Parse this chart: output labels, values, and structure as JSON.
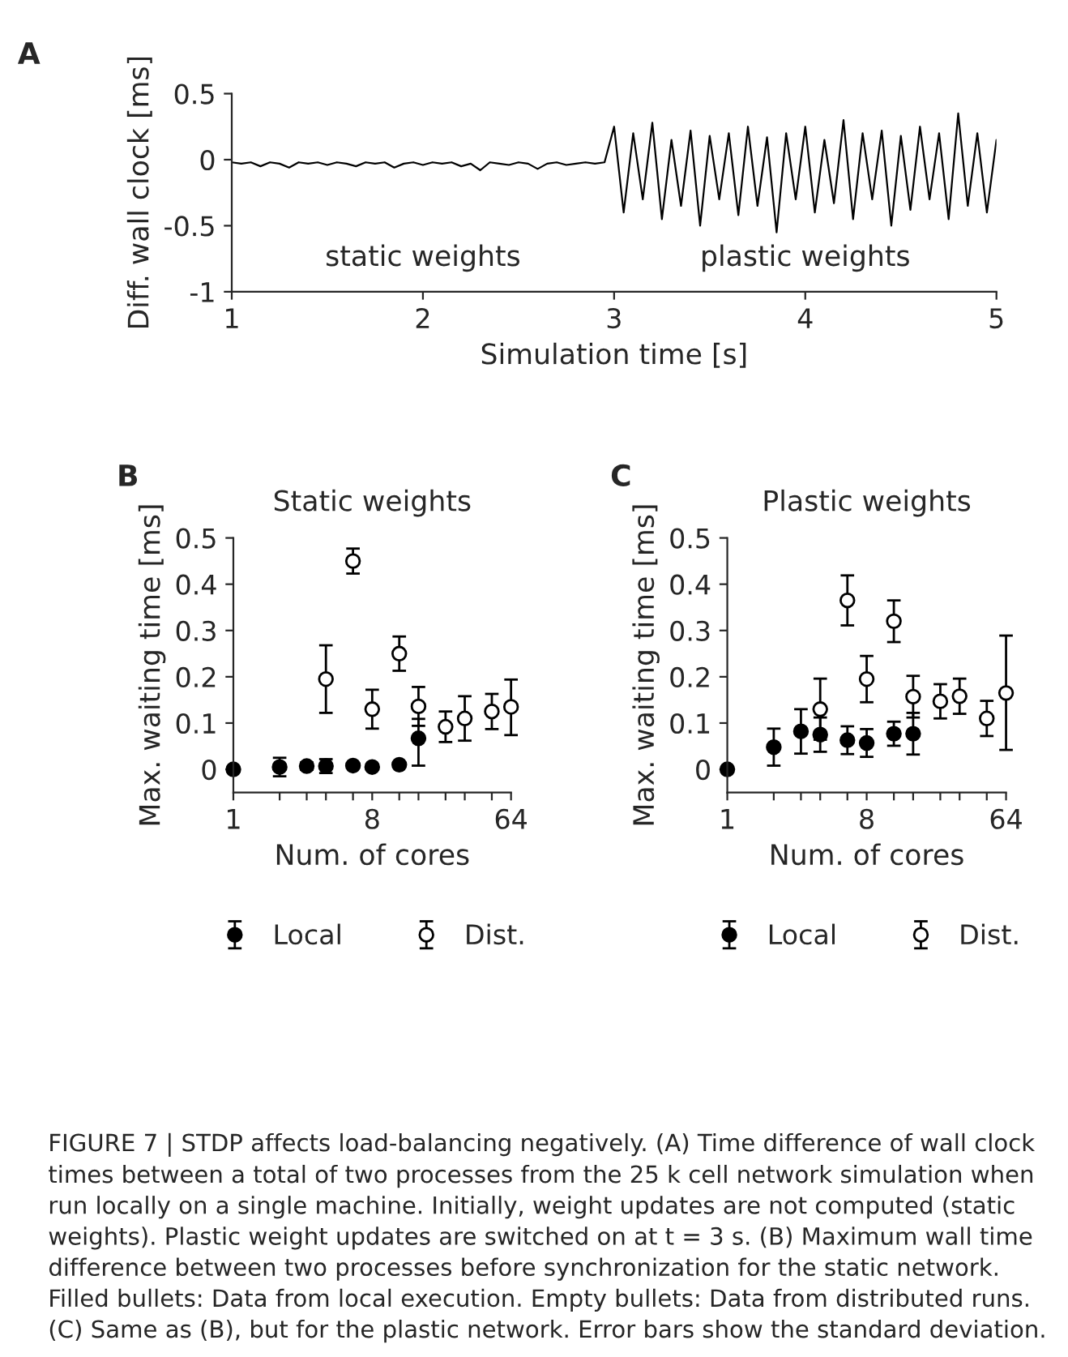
{
  "chart_data": [
    {
      "type": "line",
      "xlabel": "Simulation time [s]",
      "ylabel": "Diff. wall clock [ms]",
      "x": [
        1,
        1.05,
        1.1,
        1.15,
        1.2,
        1.25,
        1.3,
        1.35,
        1.4,
        1.45,
        1.5,
        1.55,
        1.6,
        1.65,
        1.7,
        1.75,
        1.8,
        1.85,
        1.9,
        1.95,
        2,
        2.05,
        2.1,
        2.15,
        2.2,
        2.25,
        2.3,
        2.35,
        2.4,
        2.45,
        2.5,
        2.55,
        2.6,
        2.65,
        2.7,
        2.75,
        2.8,
        2.85,
        2.9,
        2.95,
        3,
        3.05,
        3.1,
        3.15,
        3.2,
        3.25,
        3.3,
        3.35,
        3.4,
        3.45,
        3.5,
        3.55,
        3.6,
        3.65,
        3.7,
        3.75,
        3.8,
        3.85,
        3.9,
        3.95,
        4,
        4.05,
        4.1,
        4.15,
        4.2,
        4.25,
        4.3,
        4.35,
        4.4,
        4.45,
        4.5,
        4.55,
        4.6,
        4.65,
        4.7,
        4.75,
        4.8,
        4.85,
        4.9,
        4.95,
        5
      ],
      "series": [
        {
          "color": "#000000",
          "values": [
            -0.02,
            -0.03,
            -0.02,
            -0.05,
            -0.02,
            -0.03,
            -0.06,
            -0.02,
            -0.03,
            -0.02,
            -0.04,
            -0.02,
            -0.03,
            -0.05,
            -0.02,
            -0.03,
            -0.02,
            -0.06,
            -0.03,
            -0.02,
            -0.04,
            -0.02,
            -0.03,
            -0.02,
            -0.05,
            -0.03,
            -0.08,
            -0.02,
            -0.03,
            -0.04,
            -0.02,
            -0.03,
            -0.07,
            -0.03,
            -0.02,
            -0.04,
            -0.03,
            -0.02,
            -0.03,
            -0.02,
            0.25,
            -0.4,
            0.2,
            -0.3,
            0.28,
            -0.45,
            0.15,
            -0.35,
            0.22,
            -0.5,
            0.18,
            -0.3,
            0.2,
            -0.42,
            0.25,
            -0.35,
            0.17,
            -0.55,
            0.2,
            -0.3,
            0.25,
            -0.4,
            0.15,
            -0.33,
            0.3,
            -0.45,
            0.2,
            -0.3,
            0.22,
            -0.5,
            0.18,
            -0.38,
            0.25,
            -0.3,
            0.2,
            -0.45,
            0.35,
            -0.35,
            0.2,
            -0.4,
            0.15
          ]
        }
      ],
      "xlim": [
        1,
        5
      ],
      "xticks": [
        1,
        2,
        3,
        4,
        5
      ],
      "ylim": [
        -1,
        0.5
      ],
      "yticks": [
        -1,
        -0.5,
        0,
        0.5
      ],
      "annotations": [
        "A",
        "static weights",
        "plastic weights"
      ]
    },
    {
      "type": "scatter",
      "title": "Static weights",
      "xlabel": "Num. of cores",
      "ylabel": "Max. waiting time [ms]",
      "log": "x",
      "marker": "circle",
      "legend": "bottom",
      "series": [
        {
          "name": "Local",
          "color": "#000000",
          "x": [
            1,
            2,
            3,
            4,
            6,
            8,
            12,
            16
          ],
          "values": [
            0,
            0.005,
            0.007,
            0.007,
            0.008,
            0.005,
            0.01,
            0.067
          ],
          "errors": [
            null,
            0.02,
            0.008,
            0.015,
            null,
            null,
            null,
            [
              0.008,
              0.109
            ]
          ]
        },
        {
          "name": "Dist.",
          "color": "#ffffff",
          "x": [
            4,
            6,
            8,
            12,
            16,
            24,
            32,
            48,
            64
          ],
          "values": [
            0.195,
            0.45,
            0.13,
            0.25,
            0.136,
            0.092,
            0.11,
            0.125,
            0.135
          ],
          "errors": [
            0.073,
            0.027,
            0.042,
            0.037,
            0.042,
            0.033,
            0.048,
            0.038,
            [
              0.074,
              0.194
            ]
          ]
        }
      ],
      "xlim": [
        1,
        64
      ],
      "xticks": [
        1,
        {
          "value": 2,
          "label": null
        },
        {
          "value": 3,
          "label": null
        },
        {
          "value": 4,
          "label": null
        },
        {
          "value": 6,
          "label": null
        },
        8,
        {
          "value": 12,
          "label": null
        },
        {
          "value": 16,
          "label": null
        },
        {
          "value": 24,
          "label": null
        },
        {
          "value": 32,
          "label": null
        },
        {
          "value": 48,
          "label": null
        },
        64
      ],
      "ylim": [
        -0.05,
        0.5
      ],
      "yticks": [
        0,
        0.1,
        0.2,
        0.3,
        0.4,
        0.5
      ],
      "annotations": [
        "B"
      ]
    },
    {
      "type": "scatter",
      "title": "Plastic weights",
      "xlabel": "Num. of cores",
      "ylabel": "Max. waiting time [ms]",
      "log": "x",
      "marker": "circle",
      "legend": "bottom",
      "series": [
        {
          "name": "Local",
          "color": "#000000",
          "x": [
            1,
            2,
            3,
            4,
            6,
            8,
            12,
            16
          ],
          "values": [
            0,
            0.048,
            0.082,
            0.075,
            0.063,
            0.057,
            0.077,
            0.077
          ],
          "errors": [
            null,
            0.04,
            0.048,
            0.037,
            0.03,
            0.03,
            0.026,
            0.045
          ]
        },
        {
          "name": "Dist.",
          "color": "#ffffff",
          "x": [
            4,
            6,
            8,
            12,
            16,
            24,
            32,
            48,
            64
          ],
          "values": [
            0.13,
            0.365,
            0.195,
            0.32,
            0.157,
            0.147,
            0.158,
            0.11,
            0.165
          ],
          "errors": [
            0.066,
            0.054,
            0.05,
            0.045,
            0.045,
            0.037,
            0.038,
            0.038,
            [
              0.042,
              0.289
            ]
          ]
        }
      ],
      "xlim": [
        1,
        64
      ],
      "xticks": [
        1,
        {
          "value": 2,
          "label": null
        },
        {
          "value": 3,
          "label": null
        },
        {
          "value": 4,
          "label": null
        },
        {
          "value": 6,
          "label": null
        },
        8,
        {
          "value": 12,
          "label": null
        },
        {
          "value": 16,
          "label": null
        },
        {
          "value": 24,
          "label": null
        },
        {
          "value": 32,
          "label": null
        },
        {
          "value": 48,
          "label": null
        },
        64
      ],
      "ylim": [
        -0.05,
        0.5
      ],
      "yticks": [
        0,
        0.1,
        0.2,
        0.3,
        0.4,
        0.5
      ],
      "annotations": [
        "C",
        "FIGURE 7 | STDP affects load-balancing negatively. (A) Time difference of wall clock times between a total of two processes from the 25 k cell network simulation when run locally on a single machine. Initially, weight updates are not computed (static weights). Plastic weight updates are switched on at t = 3 s. (B) Maximum wall time difference between two processes before synchronization for the static network. Filled bullets: Data from local execution. Empty bullets: Data from distributed runs. (C) Same as (B), but for the plastic network. Error bars show the standard deviation."
      ]
    }
  ]
}
